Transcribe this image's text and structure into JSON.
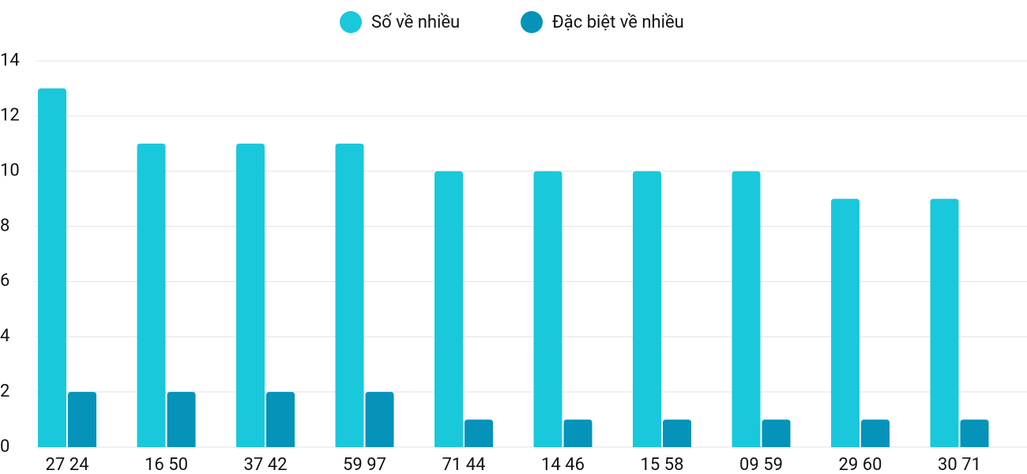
{
  "chart_data": {
    "type": "bar",
    "categories": [
      "27 24",
      "16 50",
      "37 42",
      "59 97",
      "71 44",
      "14 46",
      "15 58",
      "09 59",
      "29 60",
      "30 71"
    ],
    "series": [
      {
        "name": "Số về nhiều",
        "color": "#1ac8db",
        "values": [
          13,
          11,
          11,
          11,
          10,
          10,
          10,
          10,
          9,
          9
        ]
      },
      {
        "name": "Đặc biệt về nhiều",
        "color": "#0593b9",
        "values": [
          2,
          2,
          2,
          2,
          1,
          1,
          1,
          1,
          1,
          1
        ]
      }
    ],
    "ylim": [
      0,
      14
    ],
    "yticks": [
      0,
      2,
      4,
      6,
      8,
      10,
      12,
      14
    ],
    "grid": true,
    "legend": "top"
  }
}
